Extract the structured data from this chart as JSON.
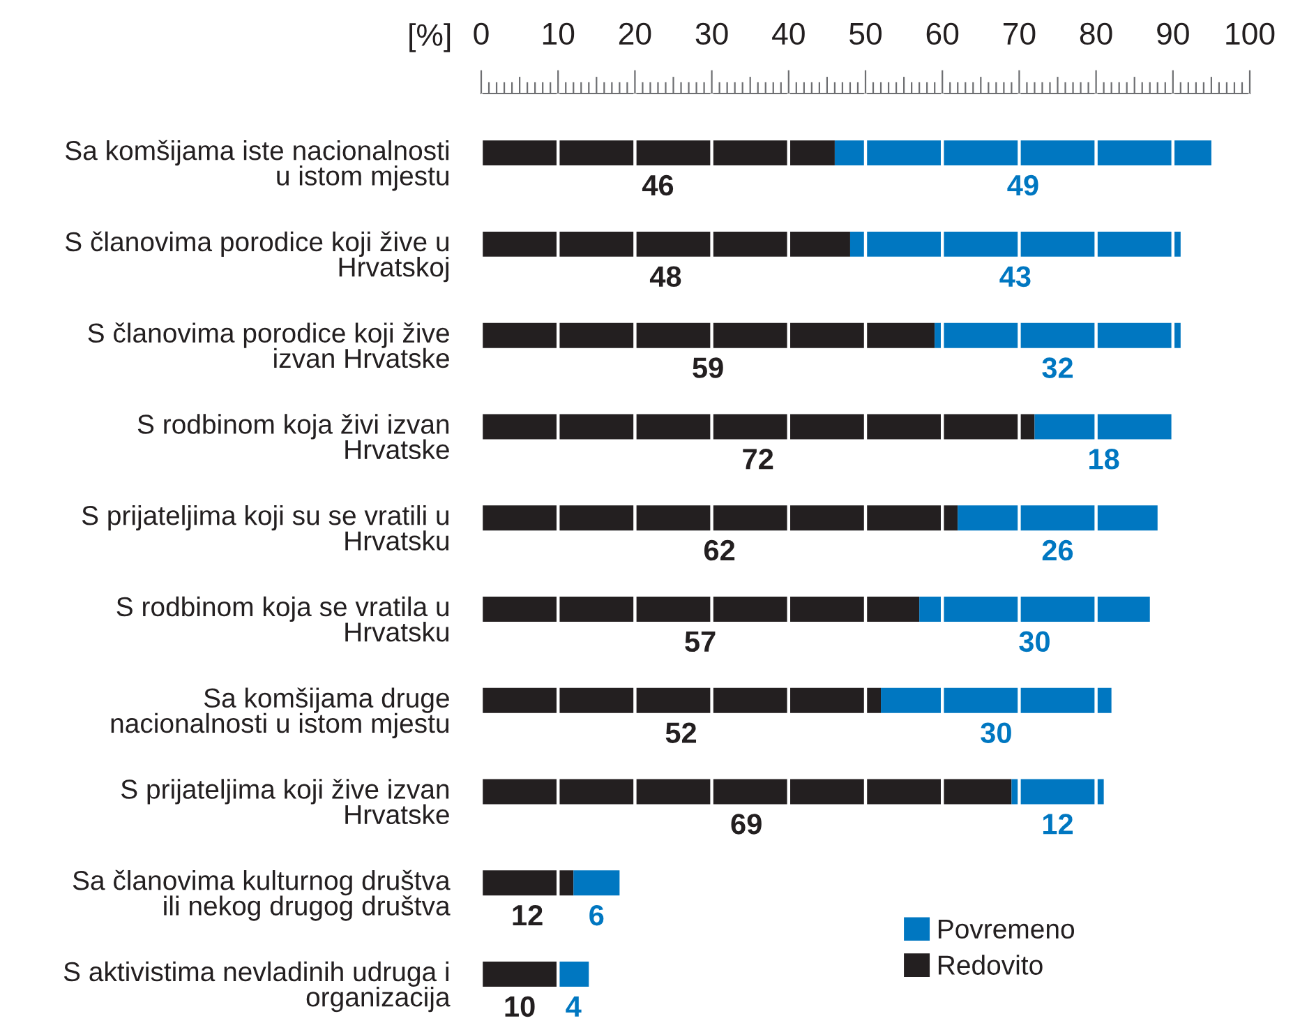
{
  "chart_data": {
    "type": "bar",
    "orientation": "horizontal",
    "stacked": true,
    "xlabel": "[%]",
    "categories": [
      "Sa komšijama iste nacionalnosti\nu istom mjestu",
      "S članovima porodice koji žive u\nHrvatskoj",
      "S članovima porodice koji žive\nizvan Hrvatske",
      "S rodbinom koja živi izvan\nHrvatske",
      "S prijateljima koji su se vratili u\nHrvatsku",
      "S rodbinom koja se vratila u\nHrvatsku",
      "Sa komšijama druge\nnacionalnosti u istom mjestu",
      "S prijateljima koji žive izvan\nHrvatske",
      "Sa članovima kulturnog društva\nili nekog drugog društva",
      "S aktivistima nevladinih udruga i\norganizacija"
    ],
    "series": [
      {
        "name": "Redovito",
        "color": "#231f20",
        "values": [
          46,
          48,
          59,
          72,
          62,
          57,
          52,
          69,
          12,
          10
        ]
      },
      {
        "name": "Povremeno",
        "color": "#0077c1",
        "values": [
          49,
          43,
          32,
          18,
          26,
          30,
          30,
          12,
          6,
          4
        ]
      }
    ],
    "xlim": [
      0,
      100
    ],
    "xticks": [
      0,
      {
        "value": 5,
        "label": null
      },
      10,
      {
        "value": 15,
        "label": null
      },
      20,
      {
        "value": 25,
        "label": null
      },
      30,
      {
        "value": 35,
        "label": null
      },
      40,
      {
        "value": 45,
        "label": null
      },
      50,
      {
        "value": 55,
        "label": null
      },
      60,
      {
        "value": 65,
        "label": null
      },
      70,
      {
        "value": 75,
        "label": null
      },
      80,
      {
        "value": 85,
        "label": null
      },
      90,
      {
        "value": 95,
        "label": null
      },
      100
    ],
    "grid": "x",
    "legend": "bottom right",
    "data_labels": true
  }
}
